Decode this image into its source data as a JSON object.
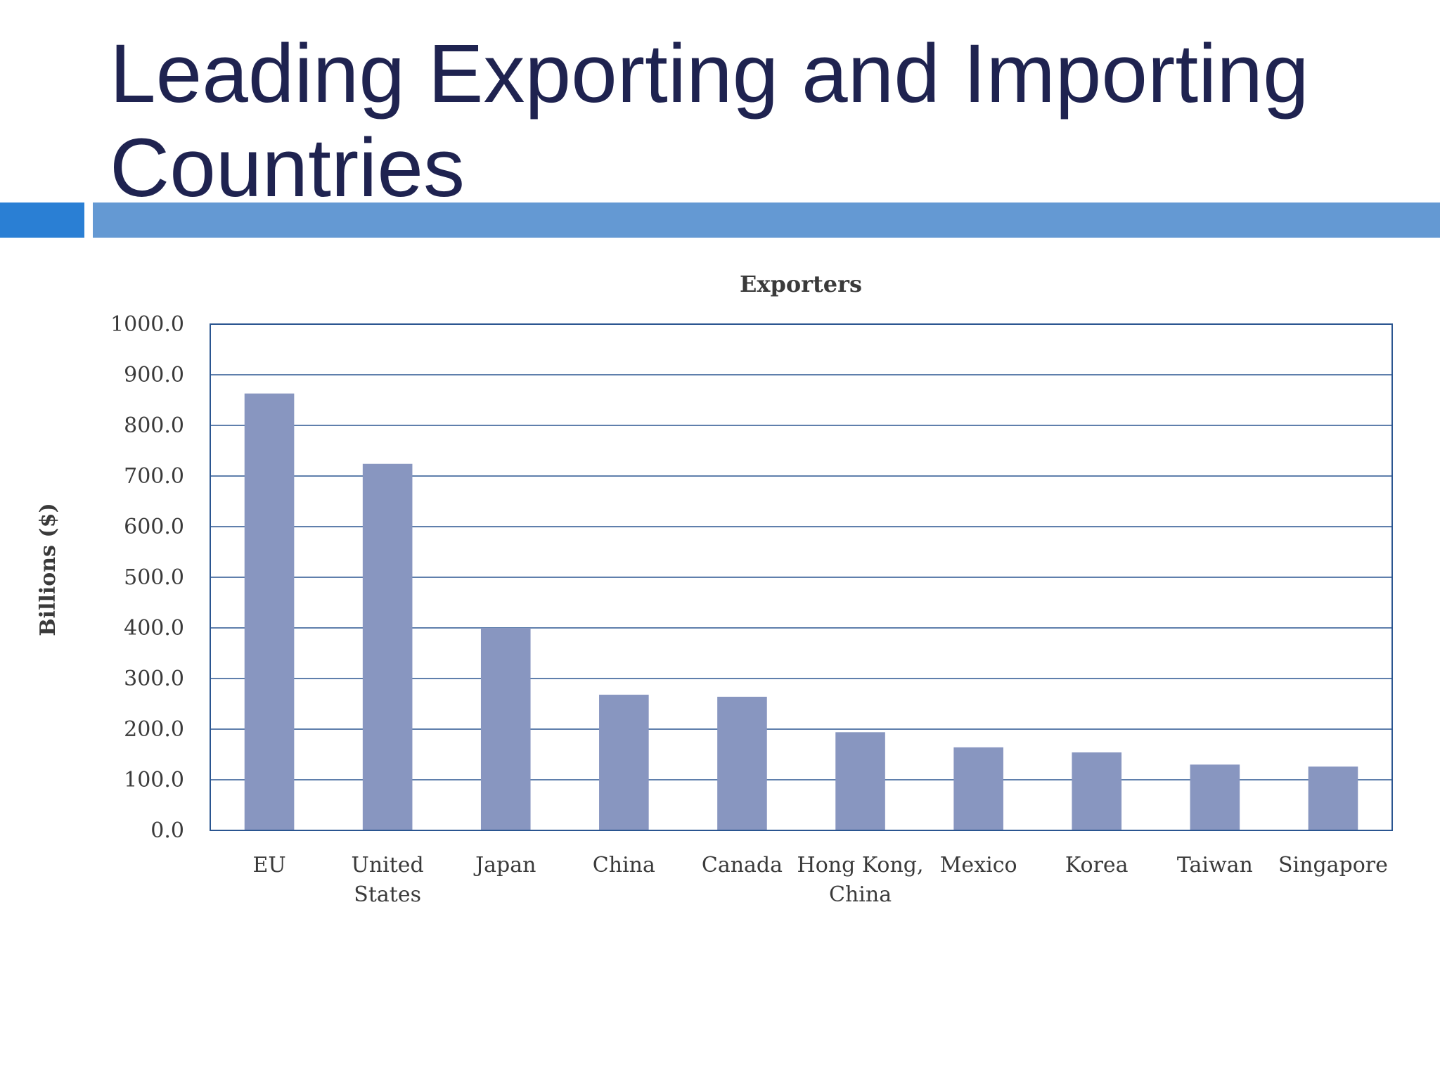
{
  "slide": {
    "title": "Leading Exporting and Importing Countries"
  },
  "colors": {
    "title": "#1f2350",
    "accent_left": "#2a7fd4",
    "accent_bar": "#6499d3",
    "bar": "#8896c0",
    "grid": "#2a5590"
  },
  "chart_data": {
    "type": "bar",
    "title": "Exporters",
    "ylabel": "Billions ($)",
    "xlabel": "",
    "ylim": [
      0,
      1000
    ],
    "yticks": [
      "0.0",
      "100.0",
      "200.0",
      "300.0",
      "400.0",
      "500.0",
      "600.0",
      "700.0",
      "800.0",
      "900.0",
      "1000.0"
    ],
    "categories": [
      "EU",
      "United States",
      "Japan",
      "China",
      "Canada",
      "Hong Kong, China",
      "Mexico",
      "Korea",
      "Taiwan",
      "Singapore"
    ],
    "category_lines": [
      [
        "EU"
      ],
      [
        "United",
        "States"
      ],
      [
        "Japan"
      ],
      [
        "China"
      ],
      [
        "Canada"
      ],
      [
        "Hong Kong,",
        "China"
      ],
      [
        "Mexico"
      ],
      [
        "Korea"
      ],
      [
        "Taiwan"
      ],
      [
        "Singapore"
      ]
    ],
    "values": [
      863,
      724,
      400,
      268,
      264,
      194,
      164,
      154,
      130,
      126
    ],
    "grid": true,
    "legend": "none"
  }
}
